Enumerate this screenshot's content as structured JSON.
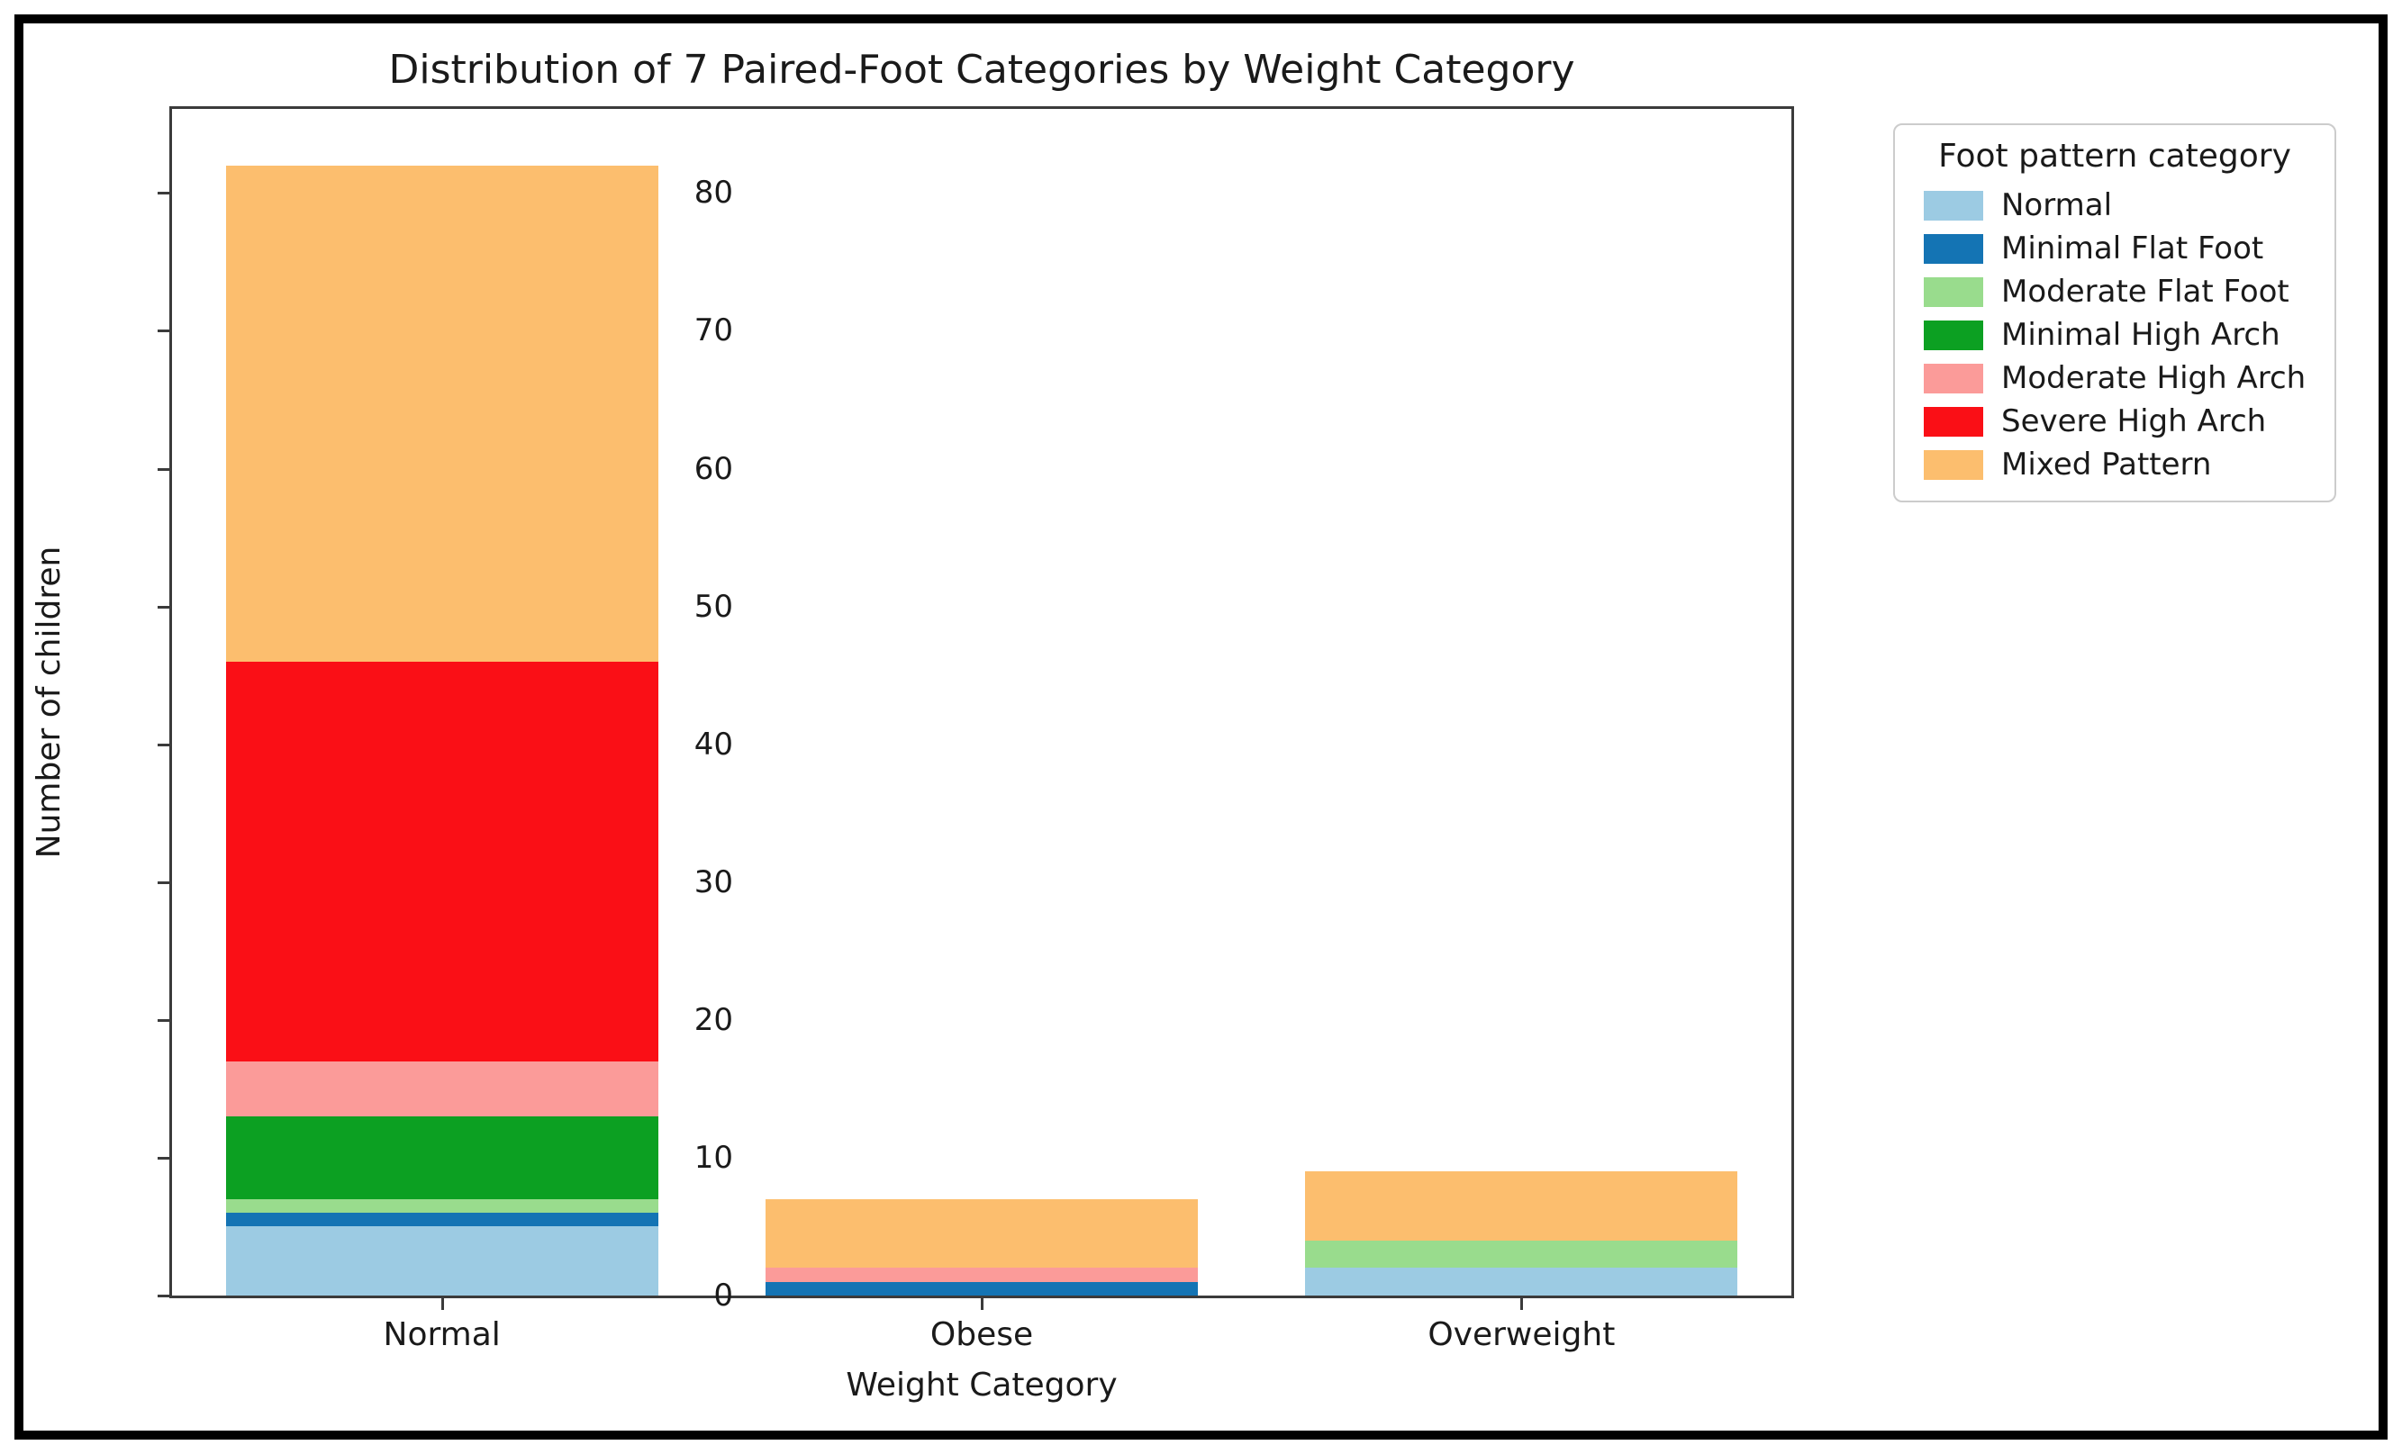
{
  "figure": {
    "title": "Distribution of 7 Paired-Foot Categories by Weight Category",
    "xlabel": "Weight Category",
    "ylabel": "Number of children"
  },
  "legend": {
    "title": "Foot pattern category"
  },
  "chart_data": {
    "type": "bar",
    "stacked": true,
    "title": "Distribution of 7 Paired-Foot Categories by Weight Category",
    "xlabel": "Weight Category",
    "ylabel": "Number of children",
    "categories": [
      "Normal",
      "Obese",
      "Overweight"
    ],
    "series": [
      {
        "name": "Normal",
        "color": "#9CCBE3",
        "values": [
          5,
          0,
          2
        ]
      },
      {
        "name": "Minimal Flat Foot",
        "color": "#1474B4",
        "values": [
          1,
          1,
          0
        ]
      },
      {
        "name": "Moderate Flat Foot",
        "color": "#99DC8D",
        "values": [
          1,
          0,
          2
        ]
      },
      {
        "name": "Minimal High Arch",
        "color": "#0CA022",
        "values": [
          6,
          0,
          0
        ]
      },
      {
        "name": "Moderate High Arch",
        "color": "#FB9B99",
        "values": [
          4,
          1,
          0
        ]
      },
      {
        "name": "Severe High Arch",
        "color": "#FA0F16",
        "values": [
          29,
          0,
          0
        ]
      },
      {
        "name": "Mixed Pattern",
        "color": "#FCBE6E",
        "values": [
          36,
          5,
          5
        ]
      }
    ],
    "totals": [
      82,
      7,
      9
    ],
    "yticks": [
      0,
      10,
      20,
      30,
      40,
      50,
      60,
      70,
      80
    ],
    "ylim": [
      0,
      86.1
    ],
    "bar_width_fraction": 0.2667,
    "grid": false,
    "legend_title": "Foot pattern category",
    "legend_position": "outside upper right"
  }
}
